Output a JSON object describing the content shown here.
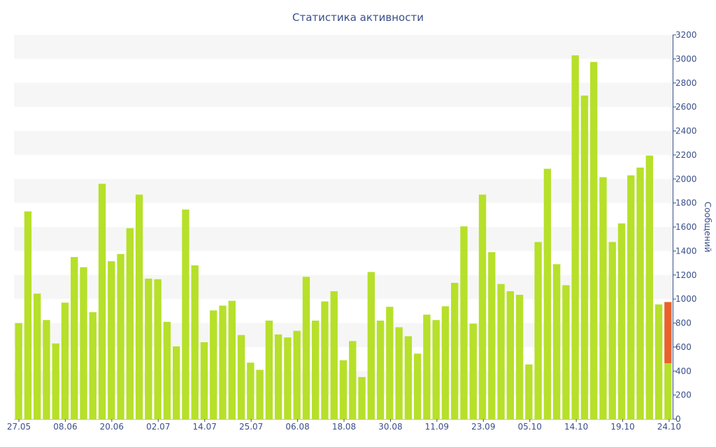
{
  "chart_data": {
    "type": "bar",
    "title": "Статистика активности",
    "xlabel": "",
    "ylabel": "Сообщений",
    "ylim": [
      0,
      3200
    ],
    "yticks": [
      0,
      200,
      400,
      600,
      800,
      1000,
      1200,
      1400,
      1600,
      1800,
      2000,
      2200,
      2400,
      2600,
      2800,
      3000,
      3200
    ],
    "xtick_labels": [
      "27.05",
      "08.06",
      "20.06",
      "02.07",
      "14.07",
      "25.07",
      "06.08",
      "18.08",
      "30.08",
      "11.09",
      "23.09",
      "05.10",
      "14.10",
      "19.10",
      "24.10"
    ],
    "grid": "horizontal alternating bands",
    "legend": "none",
    "values": [
      800,
      1730,
      1045,
      825,
      630,
      970,
      1350,
      1265,
      890,
      1960,
      1315,
      1375,
      1590,
      1870,
      1170,
      1165,
      810,
      605,
      1745,
      1280,
      640,
      905,
      945,
      985,
      700,
      470,
      410,
      820,
      705,
      680,
      735,
      1185,
      820,
      980,
      1065,
      490,
      650,
      350,
      1225,
      820,
      935,
      765,
      690,
      545,
      870,
      825,
      940,
      1135,
      1605,
      795,
      1870,
      1390,
      1125,
      1065,
      1035,
      455,
      1475,
      2085,
      1290,
      1115,
      3030,
      2695,
      2975,
      2015,
      1475,
      1630,
      2030,
      2095,
      2195,
      955,
      975
    ],
    "last_bar_split": {
      "total": 975,
      "highlighted": 465
    },
    "colors": {
      "bar": "#b6e02a",
      "highlight": "#e8632c",
      "band": "#f6f6f6",
      "text": "#3a4f8a",
      "axis": "#3a4f8a"
    }
  }
}
